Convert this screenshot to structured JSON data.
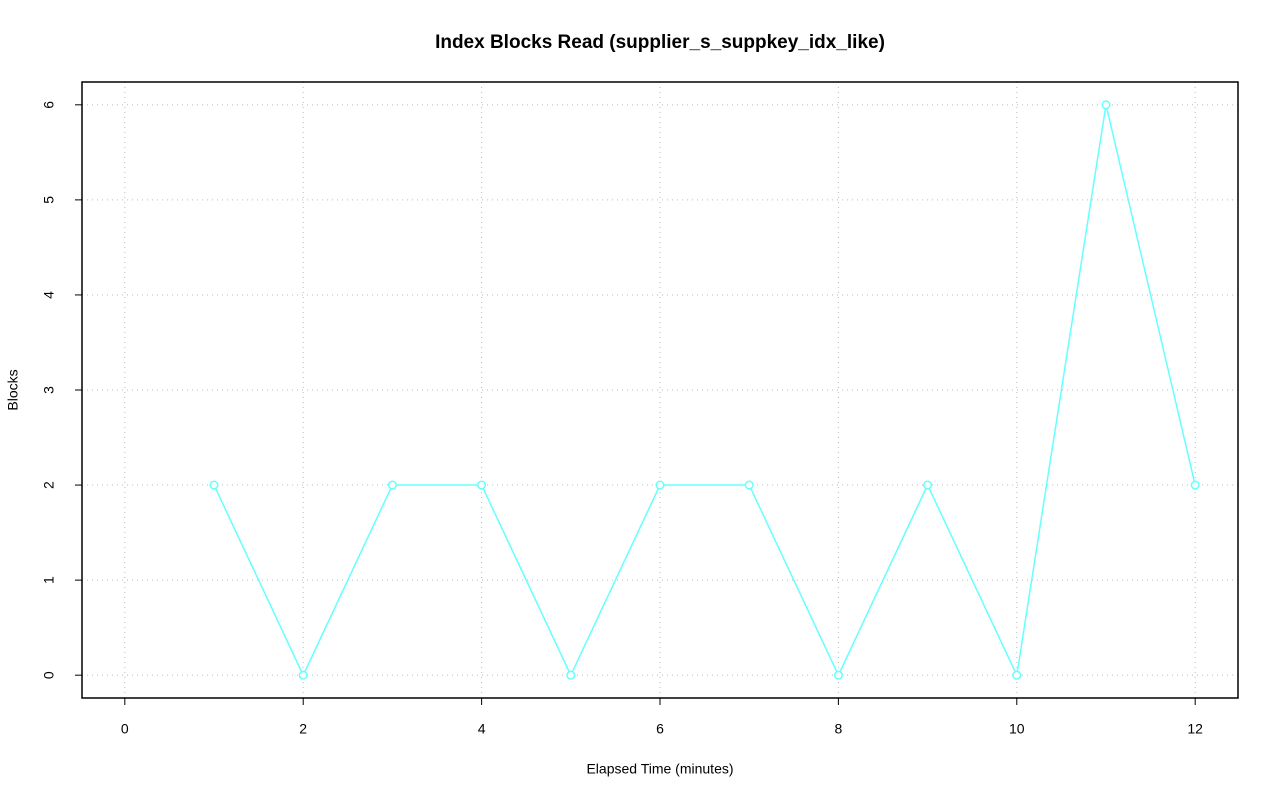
{
  "chart_data": {
    "type": "line",
    "title": "Index Blocks Read (supplier_s_suppkey_idx_like)",
    "x_label": "Elapsed Time (minutes)",
    "y_label": "Blocks",
    "x": [
      1,
      2,
      3,
      4,
      5,
      6,
      7,
      8,
      9,
      10,
      11,
      12
    ],
    "values": [
      2,
      0,
      2,
      2,
      0,
      2,
      2,
      0,
      2,
      0,
      6,
      2
    ],
    "color": "#66ffff",
    "xlim": [
      -0.48,
      12.48
    ],
    "xticks": [
      0,
      2,
      4,
      6,
      8,
      10,
      12
    ],
    "ylim": [
      -0.24,
      6.24
    ],
    "yticks": [
      0,
      1,
      2,
      3,
      4,
      5,
      6
    ],
    "grid": true,
    "markers": true
  }
}
